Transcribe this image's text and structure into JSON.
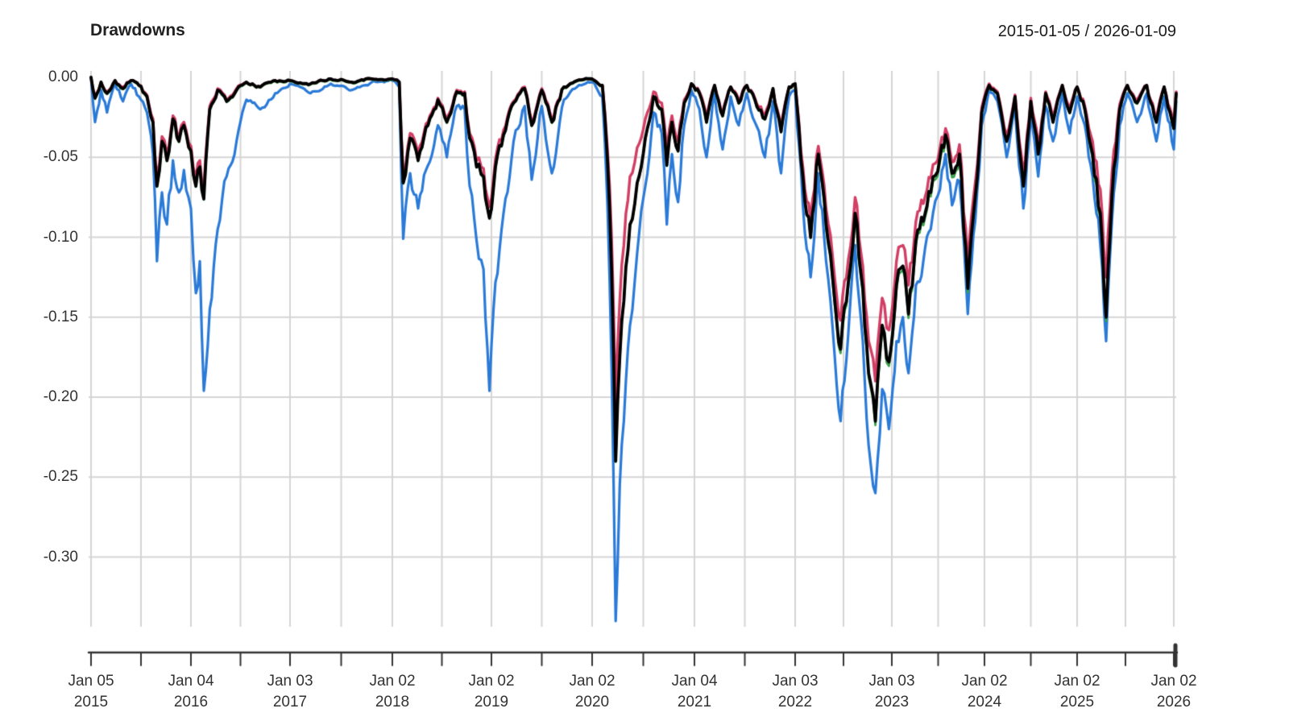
{
  "title": "Drawdowns",
  "date_range": "2015-01-05 / 2026-01-09",
  "chart_data": {
    "type": "line",
    "title": "Drawdowns",
    "subtitle": "2015-01-05 / 2026-01-09",
    "grid": true,
    "legend_position": "none",
    "xlabel": "",
    "ylabel": "",
    "x_range_years": [
      2015.0,
      2026.05
    ],
    "y_range": [
      -0.3475,
      0.0
    ],
    "grid_color": "#d5d5d5",
    "axis_color": "#333333",
    "y_axis": {
      "ticks": [
        {
          "label": "0.00",
          "v": 0.0
        },
        {
          "label": "-0.05",
          "v": -0.05
        },
        {
          "label": "-0.10",
          "v": -0.1
        },
        {
          "label": "-0.15",
          "v": -0.15
        },
        {
          "label": "-0.20",
          "v": -0.2
        },
        {
          "label": "-0.25",
          "v": -0.25
        },
        {
          "label": "-0.30",
          "v": -0.3
        }
      ]
    },
    "x_axis": {
      "minor_tick_step_years": 0.5,
      "ticks": [
        {
          "line1": "Jan 05",
          "line2": "2015",
          "t": 2015.0
        },
        {
          "line1": "Jan 04",
          "line2": "2016",
          "t": 2016.0
        },
        {
          "line1": "Jan 03",
          "line2": "2017",
          "t": 2017.0
        },
        {
          "line1": "Jan 02",
          "line2": "2018",
          "t": 2018.0
        },
        {
          "line1": "Jan 02",
          "line2": "2019",
          "t": 2019.0
        },
        {
          "line1": "Jan 02",
          "line2": "2020",
          "t": 2020.0
        },
        {
          "line1": "Jan 04",
          "line2": "2021",
          "t": 2021.0
        },
        {
          "line1": "Jan 03",
          "line2": "2022",
          "t": 2022.0
        },
        {
          "line1": "Jan 03",
          "line2": "2023",
          "t": 2023.0
        },
        {
          "line1": "Jan 02",
          "line2": "2024",
          "t": 2024.0
        },
        {
          "line1": "Jan 02",
          "line2": "2025",
          "t": 2025.0
        },
        {
          "line1": "Jan 02",
          "line2": "2026",
          "t": 2026.0
        }
      ]
    },
    "x": [
      2015.0,
      2015.04,
      2015.1,
      2015.16,
      2015.24,
      2015.32,
      2015.4,
      2015.48,
      2015.56,
      2015.62,
      2015.66,
      2015.71,
      2015.76,
      2015.82,
      2015.88,
      2015.93,
      2016.0,
      2016.05,
      2016.09,
      2016.13,
      2016.19,
      2016.27,
      2016.36,
      2016.46,
      2016.56,
      2016.7,
      2016.85,
      2017.0,
      2017.2,
      2017.4,
      2017.6,
      2017.8,
      2018.0,
      2018.07,
      2018.11,
      2018.18,
      2018.26,
      2018.36,
      2018.46,
      2018.55,
      2018.65,
      2018.73,
      2018.78,
      2018.85,
      2018.92,
      2018.98,
      2019.04,
      2019.12,
      2019.22,
      2019.33,
      2019.4,
      2019.5,
      2019.6,
      2019.72,
      2019.85,
      2020.0,
      2020.1,
      2020.15,
      2020.19,
      2020.23,
      2020.27,
      2020.31,
      2020.37,
      2020.44,
      2020.52,
      2020.6,
      2020.68,
      2020.73,
      2020.78,
      2020.84,
      2020.9,
      2020.97,
      2021.05,
      2021.12,
      2021.2,
      2021.28,
      2021.36,
      2021.44,
      2021.52,
      2021.6,
      2021.7,
      2021.78,
      2021.86,
      2021.94,
      2022.0,
      2022.08,
      2022.16,
      2022.24,
      2022.32,
      2022.41,
      2022.47,
      2022.55,
      2022.62,
      2022.7,
      2022.76,
      2022.83,
      2022.9,
      2022.97,
      2023.05,
      2023.12,
      2023.18,
      2023.26,
      2023.34,
      2023.42,
      2023.52,
      2023.58,
      2023.65,
      2023.73,
      2023.82,
      2023.9,
      2023.97,
      2024.05,
      2024.14,
      2024.24,
      2024.33,
      2024.42,
      2024.5,
      2024.58,
      2024.66,
      2024.74,
      2024.84,
      2024.92,
      2025.0,
      2025.08,
      2025.16,
      2025.24,
      2025.3,
      2025.36,
      2025.44,
      2025.52,
      2025.62,
      2025.72,
      2025.82,
      2025.9,
      2026.0,
      2026.03
    ],
    "series": [
      {
        "name": "series-blue",
        "color": "#2A7AD8",
        "line_width": 3.2,
        "values": [
          0,
          -0.028,
          -0.008,
          -0.022,
          -0.004,
          -0.015,
          -0.004,
          -0.012,
          -0.022,
          -0.048,
          -0.115,
          -0.072,
          -0.092,
          -0.052,
          -0.072,
          -0.058,
          -0.082,
          -0.135,
          -0.115,
          -0.196,
          -0.145,
          -0.095,
          -0.062,
          -0.04,
          -0.014,
          -0.02,
          -0.01,
          -0.004,
          -0.01,
          -0.004,
          -0.008,
          -0.003,
          -0.002,
          -0.006,
          -0.101,
          -0.06,
          -0.082,
          -0.055,
          -0.03,
          -0.05,
          -0.018,
          -0.02,
          -0.068,
          -0.102,
          -0.12,
          -0.196,
          -0.128,
          -0.085,
          -0.04,
          -0.018,
          -0.064,
          -0.018,
          -0.06,
          -0.014,
          -0.006,
          -0.003,
          -0.012,
          -0.08,
          -0.18,
          -0.34,
          -0.255,
          -0.215,
          -0.155,
          -0.11,
          -0.068,
          -0.022,
          -0.035,
          -0.092,
          -0.048,
          -0.078,
          -0.03,
          -0.008,
          -0.02,
          -0.05,
          -0.01,
          -0.045,
          -0.012,
          -0.03,
          -0.01,
          -0.028,
          -0.05,
          -0.015,
          -0.06,
          -0.012,
          -0.008,
          -0.08,
          -0.125,
          -0.06,
          -0.115,
          -0.175,
          -0.215,
          -0.16,
          -0.105,
          -0.165,
          -0.23,
          -0.26,
          -0.195,
          -0.22,
          -0.165,
          -0.15,
          -0.185,
          -0.13,
          -0.115,
          -0.095,
          -0.07,
          -0.048,
          -0.08,
          -0.065,
          -0.148,
          -0.09,
          -0.03,
          -0.008,
          -0.015,
          -0.05,
          -0.02,
          -0.082,
          -0.025,
          -0.062,
          -0.018,
          -0.04,
          -0.01,
          -0.035,
          -0.012,
          -0.03,
          -0.062,
          -0.105,
          -0.165,
          -0.09,
          -0.03,
          -0.01,
          -0.028,
          -0.01,
          -0.04,
          -0.012,
          -0.045,
          -0.015
        ]
      },
      {
        "name": "series-green",
        "color": "#3AA04A",
        "line_width": 2.8,
        "values": [
          0,
          -0.0135,
          -0.0035,
          -0.0105,
          -0.0025,
          -0.0075,
          -0.0025,
          -0.0055,
          -0.0125,
          -0.0285,
          -0.0685,
          -0.0405,
          -0.0525,
          -0.0265,
          -0.0405,
          -0.0305,
          -0.0465,
          -0.0685,
          -0.0565,
          -0.0765,
          -0.0205,
          -0.0085,
          -0.0155,
          -0.0085,
          -0.0035,
          -0.0065,
          -0.0025,
          -0.0025,
          -0.0045,
          -0.0015,
          -0.0035,
          -0.0015,
          -0.0015,
          -0.0035,
          -0.0665,
          -0.0385,
          -0.0525,
          -0.0305,
          -0.0145,
          -0.0285,
          -0.0095,
          -0.0105,
          -0.0385,
          -0.0565,
          -0.0625,
          -0.0885,
          -0.0565,
          -0.0365,
          -0.0165,
          -0.0075,
          -0.0305,
          -0.0085,
          -0.0285,
          -0.0065,
          -0.0025,
          -0.0015,
          -0.0055,
          -0.0525,
          -0.1205,
          -0.2405,
          -0.1755,
          -0.1405,
          -0.0925,
          -0.0665,
          -0.0385,
          -0.0125,
          -0.0205,
          -0.0555,
          -0.0285,
          -0.0465,
          -0.0165,
          -0.0045,
          -0.0105,
          -0.0285,
          -0.0055,
          -0.0245,
          -0.0065,
          -0.0165,
          -0.0055,
          -0.0145,
          -0.0265,
          -0.0075,
          -0.0345,
          -0.0065,
          -0.0045,
          -0.0625,
          -0.1005,
          -0.0485,
          -0.0945,
          -0.1425,
          -0.1725,
          -0.1305,
          -0.0875,
          -0.1345,
          -0.1875,
          -0.2175,
          -0.1575,
          -0.1805,
          -0.1325,
          -0.1205,
          -0.1505,
          -0.1045,
          -0.0925,
          -0.0745,
          -0.0525,
          -0.0385,
          -0.0625,
          -0.0505,
          -0.1345,
          -0.0755,
          -0.0225,
          -0.0055,
          -0.0105,
          -0.0405,
          -0.0125,
          -0.0685,
          -0.0155,
          -0.0485,
          -0.0105,
          -0.0285,
          -0.0055,
          -0.0225,
          -0.0065,
          -0.0205,
          -0.0505,
          -0.0875,
          -0.1525,
          -0.0775,
          -0.0205,
          -0.0055,
          -0.0165,
          -0.0055,
          -0.0285,
          -0.0065,
          -0.0325,
          -0.0105
        ]
      },
      {
        "name": "series-crimson",
        "color": "#D23E64",
        "line_width": 3.4,
        "values": [
          0,
          -0.012,
          -0.003,
          -0.009,
          -0.002,
          -0.006,
          -0.002,
          -0.005,
          -0.011,
          -0.026,
          -0.063,
          -0.037,
          -0.048,
          -0.024,
          -0.037,
          -0.028,
          -0.043,
          -0.063,
          -0.052,
          -0.07,
          -0.018,
          -0.007,
          -0.014,
          -0.007,
          -0.003,
          -0.006,
          -0.002,
          -0.002,
          -0.004,
          -0.001,
          -0.003,
          -0.001,
          -0.001,
          -0.003,
          -0.061,
          -0.035,
          -0.048,
          -0.028,
          -0.013,
          -0.026,
          -0.008,
          -0.009,
          -0.035,
          -0.052,
          -0.057,
          -0.081,
          -0.051,
          -0.033,
          -0.015,
          -0.006,
          -0.028,
          -0.007,
          -0.026,
          -0.006,
          -0.002,
          -0.001,
          -0.005,
          -0.045,
          -0.1,
          -0.205,
          -0.14,
          -0.105,
          -0.062,
          -0.044,
          -0.026,
          -0.009,
          -0.016,
          -0.046,
          -0.024,
          -0.04,
          -0.014,
          -0.004,
          -0.009,
          -0.025,
          -0.005,
          -0.022,
          -0.006,
          -0.014,
          -0.005,
          -0.013,
          -0.023,
          -0.007,
          -0.031,
          -0.006,
          -0.004,
          -0.056,
          -0.09,
          -0.043,
          -0.082,
          -0.126,
          -0.152,
          -0.114,
          -0.075,
          -0.118,
          -0.165,
          -0.19,
          -0.138,
          -0.158,
          -0.115,
          -0.105,
          -0.13,
          -0.09,
          -0.079,
          -0.063,
          -0.044,
          -0.032,
          -0.053,
          -0.042,
          -0.118,
          -0.066,
          -0.019,
          -0.004,
          -0.009,
          -0.036,
          -0.011,
          -0.06,
          -0.013,
          -0.042,
          -0.009,
          -0.025,
          -0.005,
          -0.019,
          -0.006,
          -0.018,
          -0.04,
          -0.07,
          -0.125,
          -0.06,
          -0.017,
          -0.005,
          -0.014,
          -0.005,
          -0.025,
          -0.006,
          -0.028,
          -0.009
        ]
      },
      {
        "name": "series-black",
        "color": "#000000",
        "line_width": 3.8,
        "values": [
          0,
          -0.013,
          -0.003,
          -0.01,
          -0.002,
          -0.007,
          -0.002,
          -0.005,
          -0.012,
          -0.028,
          -0.068,
          -0.04,
          -0.052,
          -0.026,
          -0.04,
          -0.03,
          -0.046,
          -0.068,
          -0.056,
          -0.076,
          -0.02,
          -0.008,
          -0.015,
          -0.008,
          -0.003,
          -0.006,
          -0.002,
          -0.002,
          -0.004,
          -0.001,
          -0.003,
          -0.001,
          -0.001,
          -0.003,
          -0.066,
          -0.038,
          -0.052,
          -0.03,
          -0.014,
          -0.028,
          -0.009,
          -0.01,
          -0.038,
          -0.056,
          -0.062,
          -0.088,
          -0.056,
          -0.036,
          -0.016,
          -0.007,
          -0.03,
          -0.008,
          -0.028,
          -0.006,
          -0.002,
          -0.001,
          -0.005,
          -0.052,
          -0.12,
          -0.24,
          -0.175,
          -0.14,
          -0.092,
          -0.066,
          -0.038,
          -0.012,
          -0.02,
          -0.055,
          -0.028,
          -0.046,
          -0.016,
          -0.004,
          -0.01,
          -0.028,
          -0.005,
          -0.024,
          -0.006,
          -0.016,
          -0.005,
          -0.014,
          -0.026,
          -0.007,
          -0.034,
          -0.006,
          -0.004,
          -0.062,
          -0.1,
          -0.048,
          -0.092,
          -0.14,
          -0.17,
          -0.128,
          -0.085,
          -0.132,
          -0.185,
          -0.215,
          -0.155,
          -0.178,
          -0.13,
          -0.118,
          -0.148,
          -0.102,
          -0.09,
          -0.072,
          -0.05,
          -0.036,
          -0.06,
          -0.048,
          -0.132,
          -0.075,
          -0.022,
          -0.005,
          -0.01,
          -0.04,
          -0.012,
          -0.068,
          -0.015,
          -0.048,
          -0.01,
          -0.028,
          -0.005,
          -0.022,
          -0.006,
          -0.02,
          -0.048,
          -0.085,
          -0.15,
          -0.075,
          -0.02,
          -0.005,
          -0.016,
          -0.005,
          -0.028,
          -0.006,
          -0.032,
          -0.01
        ]
      }
    ]
  }
}
